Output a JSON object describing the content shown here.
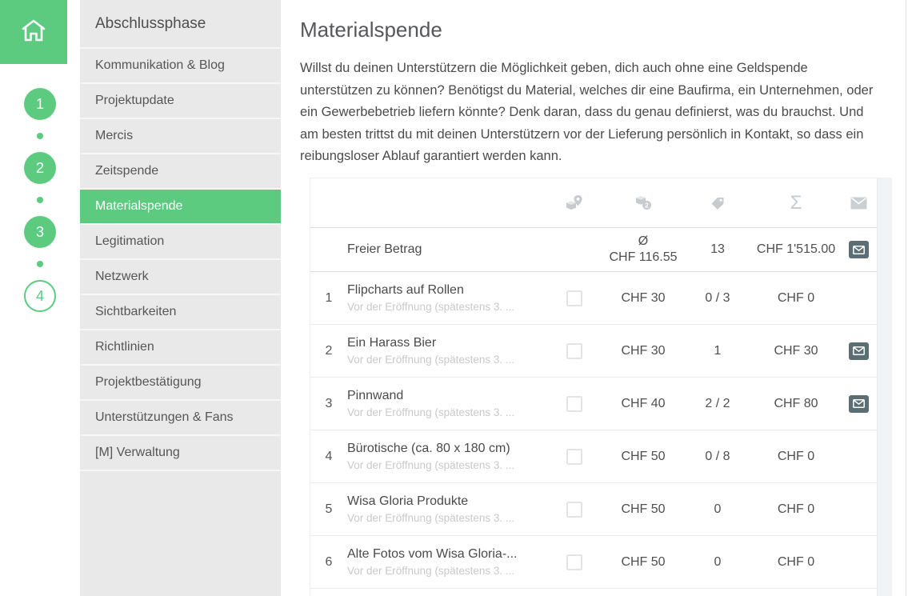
{
  "colors": {
    "accent_green": "#5CCB80",
    "sidebar_bg": "#E9E9E9",
    "mail_button": "#5A6E74",
    "header_icon_gray": "#C5CBCE"
  },
  "left_rail": {
    "home_icon": "home-icon",
    "steps": [
      {
        "label": "1",
        "filled": true
      },
      {
        "label": "2",
        "filled": true
      },
      {
        "label": "3",
        "filled": true
      },
      {
        "label": "4",
        "filled": false
      }
    ]
  },
  "sidebar": {
    "header": "Abschlussphase",
    "items": [
      {
        "id": "kommunikation-blog",
        "label": "Kommunikation & Blog",
        "active": false
      },
      {
        "id": "projektupdate",
        "label": "Projektupdate",
        "active": false
      },
      {
        "id": "mercis",
        "label": "Mercis",
        "active": false
      },
      {
        "id": "zeitspende",
        "label": "Zeitspende",
        "active": false
      },
      {
        "id": "materialspende",
        "label": "Materialspende",
        "active": true
      },
      {
        "id": "legitimation",
        "label": "Legitimation",
        "active": false
      },
      {
        "id": "netzwerk",
        "label": "Netzwerk",
        "active": false
      },
      {
        "id": "sichtbarkeiten",
        "label": "Sichtbarkeiten",
        "active": false
      },
      {
        "id": "richtlinien",
        "label": "Richtlinien",
        "active": false
      },
      {
        "id": "projektbestaetigung",
        "label": "Projektbestätigung",
        "active": false
      },
      {
        "id": "unterstuetzungen-fans",
        "label": "Unterstützungen & Fans",
        "active": false
      },
      {
        "id": "m-verwaltung",
        "label": "[M] Verwaltung",
        "active": false
      }
    ]
  },
  "main": {
    "title": "Materialspende",
    "intro": "Willst du deinen Unterstützern die Möglichkeit geben, dich auch ohne eine Geldspende unterstützen zu können? Benötigst du Material, welches dir eine Baufirma, ein Unternehmen, oder ein Gewerbebetrieb liefern könnte? Denk daran, dass du genau definierst, was du brauchst. Und am besten trittst du mit deinen Unterstützern vor der Lieferung persönlich in Kontakt, so dass ein reibungsloser Ablauf garantiert werden kann.",
    "table": {
      "header_icons": [
        "package-location-icon",
        "package-quantity-icon",
        "price-tag-icon",
        "sum-sigma-icon",
        "mail-icon"
      ],
      "summary_row": {
        "title": "Freier Betrag",
        "average_symbol": "Ø",
        "average_value": "CHF 116.55",
        "count": "13",
        "total": "CHF 1'515.00",
        "has_mail": true
      },
      "rows": [
        {
          "index": "1",
          "title": "Flipcharts auf Rollen",
          "subtitle": "Vor der Eröffnung (spätestens 3. ...",
          "price": "CHF 30",
          "qty": "0 / 3",
          "total": "CHF 0",
          "has_mail": false
        },
        {
          "index": "2",
          "title": "Ein Harass Bier",
          "subtitle": "Vor der Eröffnung (spätestens 3. ...",
          "price": "CHF 30",
          "qty": "1",
          "total": "CHF 30",
          "has_mail": true
        },
        {
          "index": "3",
          "title": "Pinnwand",
          "subtitle": "Vor der Eröffnung (spätestens 3. ...",
          "price": "CHF 40",
          "qty": "2 / 2",
          "total": "CHF 80",
          "has_mail": true
        },
        {
          "index": "4",
          "title": "Bürotische (ca. 80 x 180 cm)",
          "subtitle": "Vor der Eröffnung (spätestens 3. ...",
          "price": "CHF 50",
          "qty": "0 / 8",
          "total": "CHF 0",
          "has_mail": false
        },
        {
          "index": "5",
          "title": "Wisa Gloria Produkte",
          "subtitle": "Vor der Eröffnung (spätestens 3. ...",
          "price": "CHF 50",
          "qty": "0",
          "total": "CHF 0",
          "has_mail": false
        },
        {
          "index": "6",
          "title": "Alte Fotos vom Wisa Gloria-...",
          "subtitle": "Vor der Eröffnung (spätestens 3. ...",
          "price": "CHF 50",
          "qty": "0",
          "total": "CHF 0",
          "has_mail": false
        }
      ]
    }
  }
}
